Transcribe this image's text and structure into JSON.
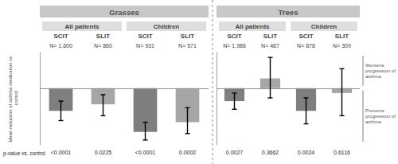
{
  "chart_data": {
    "type": "bar",
    "ylabel": "Mean reduction of asthma medication vs. control",
    "p_value_label": "p-value vs. control",
    "annotations": [
      {
        "text": "Worsens progression of asthma",
        "side": "above"
      },
      {
        "text": "Prevents progression of asthma",
        "side": "below"
      }
    ],
    "ylim": [
      -35,
      22
    ],
    "yticks": [
      0
    ],
    "grid": true,
    "tick_labels": "x",
    "panels": [
      {
        "title": "Grasses",
        "groups": [
          "All patients",
          "Children"
        ],
        "categories": [
          "SCIT",
          "SLIT",
          "SCIT",
          "SLIT"
        ],
        "n_labels": [
          "N= 1,600",
          "N= 860",
          "N= 931",
          "N= 571"
        ],
        "values": [
          -14,
          -10,
          -27,
          -21
        ],
        "error_low": [
          -20,
          -17,
          -32,
          -28
        ],
        "error_high": [
          -8,
          -4,
          -21,
          -12
        ],
        "p_values": [
          "<0.0001",
          "0.0225",
          "<0.0001",
          "0.0002"
        ],
        "colors": [
          "#7f7f7f",
          "#a6a6a6",
          "#7f7f7f",
          "#a6a6a6"
        ]
      },
      {
        "title": "Trees",
        "groups": [
          "All patients",
          "Children"
        ],
        "categories": [
          "SCIT",
          "SLIT",
          "SCIT",
          "SLIT"
        ],
        "n_labels": [
          "N= 1,986",
          "N= 487",
          "N= 878",
          "N= 309"
        ],
        "values": [
          -8,
          6,
          -14,
          -3
        ],
        "error_low": [
          -13,
          -6,
          -22,
          -17
        ],
        "error_high": [
          -3,
          19,
          -6,
          12
        ],
        "p_values": [
          "0.0027",
          "0.3662",
          "0.0024",
          "0.6116"
        ],
        "colors": [
          "#7f7f7f",
          "#a6a6a6",
          "#7f7f7f",
          "#a6a6a6"
        ]
      }
    ]
  }
}
